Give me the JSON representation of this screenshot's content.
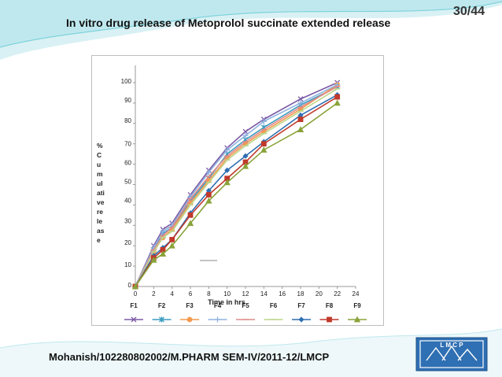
{
  "slide": {
    "page_number": "30/44",
    "title": "In vitro drug release of Metoprolol succinate extended release",
    "footer": "Mohanish/10228080​2002/M.PHARM SEM-IV/2011-12/LMCP",
    "logo_text": "LMCP"
  },
  "colors": {
    "theme_teal": "#7fd3dc",
    "theme_light": "#d9f1f4"
  },
  "chart_data": {
    "type": "line",
    "title": "",
    "xlabel": "Time in hrs",
    "ylabel_chars": [
      "%",
      "C",
      "u",
      "m",
      "ul",
      "ati",
      "ve",
      "re",
      "le",
      "as",
      "e"
    ],
    "x_ticks": [
      "0",
      "2",
      "4",
      "6",
      "8",
      "10",
      "12",
      "14",
      "16",
      "18",
      "20",
      "22",
      "24"
    ],
    "y_ticks": [
      "0",
      "10",
      "20",
      "30",
      "40",
      "50",
      "60",
      "70",
      "80",
      "90",
      "100"
    ],
    "xlim": [
      0,
      24
    ],
    "ylim": [
      0,
      100
    ],
    "grid": false,
    "legend_position": "bottom",
    "x": [
      0,
      2,
      3,
      4,
      6,
      8,
      10,
      12,
      14,
      18,
      22
    ],
    "series": [
      {
        "name": "F1",
        "color": "#7b5aa6",
        "marker": "x",
        "values": [
          0,
          20,
          28,
          31,
          45,
          57,
          68,
          76,
          82,
          92,
          100
        ]
      },
      {
        "name": "F2",
        "color": "#3b9bbf",
        "marker": "asterisk",
        "values": [
          0,
          18,
          26,
          29,
          42,
          53,
          65,
          72,
          78,
          89,
          98
        ]
      },
      {
        "name": "F3",
        "color": "#f39a4f",
        "marker": "circle",
        "values": [
          0,
          17,
          24,
          28,
          41,
          52,
          63,
          70,
          76,
          87,
          99
        ]
      },
      {
        "name": "F4",
        "color": "#8fb3e0",
        "marker": "plus",
        "values": [
          0,
          19,
          27,
          30,
          44,
          56,
          67,
          74,
          81,
          90,
          99
        ]
      },
      {
        "name": "F5",
        "color": "#e08a8a",
        "marker": "dash",
        "values": [
          0,
          18,
          25,
          29,
          43,
          54,
          64,
          71,
          77,
          88,
          98
        ]
      },
      {
        "name": "F6",
        "color": "#bcd68b",
        "marker": "dash",
        "values": [
          0,
          17,
          24,
          27,
          40,
          51,
          62,
          69,
          75,
          86,
          97
        ]
      },
      {
        "name": "F7",
        "color": "#2f6fb3",
        "marker": "diamond",
        "values": [
          0,
          15,
          19,
          23,
          36,
          47,
          57,
          64,
          71,
          84,
          94
        ]
      },
      {
        "name": "F8",
        "color": "#c0392b",
        "marker": "square",
        "values": [
          0,
          14,
          18,
          23,
          35,
          45,
          53,
          61,
          70,
          82,
          93
        ]
      },
      {
        "name": "F9",
        "color": "#8aa33a",
        "marker": "triangle",
        "values": [
          0,
          13,
          16,
          20,
          31,
          42,
          51,
          59,
          67,
          77,
          90
        ]
      }
    ]
  }
}
